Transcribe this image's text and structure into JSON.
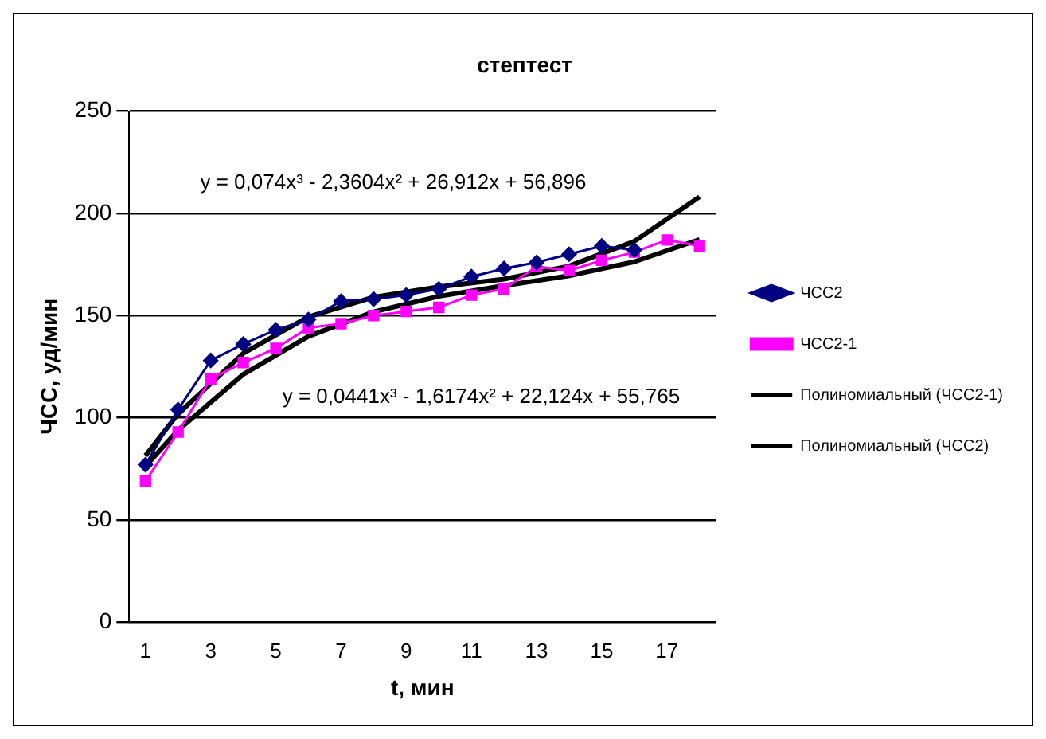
{
  "chart_data": {
    "type": "line",
    "title": "стептест",
    "xlabel": "t, мин",
    "ylabel": "ЧСС, уд/мин",
    "x": [
      1,
      2,
      3,
      4,
      5,
      6,
      7,
      8,
      9,
      10,
      11,
      12,
      13,
      14,
      15,
      16,
      17,
      18
    ],
    "xlim": [
      0.5,
      18.5
    ],
    "xticks": [
      1,
      3,
      5,
      7,
      9,
      11,
      13,
      15,
      17
    ],
    "ylim": [
      0,
      250
    ],
    "yticks": [
      0,
      50,
      100,
      150,
      200,
      250
    ],
    "grid": "y",
    "legend": "right",
    "series": [
      {
        "name": "ЧСС2",
        "color": "#000080",
        "marker": "diamond",
        "x": [
          1,
          2,
          3,
          4,
          5,
          6,
          7,
          8,
          9,
          10,
          11,
          12,
          13,
          14,
          15,
          16
        ],
        "values": [
          77,
          104,
          128,
          136,
          143,
          148,
          157,
          158,
          160,
          163,
          169,
          173,
          176,
          180,
          184,
          182
        ]
      },
      {
        "name": "ЧСС2-1",
        "color": "#ff00ff",
        "marker": "square",
        "values": [
          69,
          93,
          119,
          127,
          134,
          144,
          146,
          150,
          152,
          154,
          160,
          163,
          174,
          172,
          177,
          181,
          187,
          184
        ]
      },
      {
        "name": "Полиномиальный (ЧСС2-1)",
        "color": "#000000",
        "marker": "none",
        "x": [
          1,
          2,
          4,
          6,
          8,
          10,
          12,
          14,
          16,
          18
        ],
        "values": [
          76.3,
          93.9,
          121.2,
          139.8,
          151.8,
          159.4,
          164.6,
          169.5,
          176.3,
          187.2
        ]
      },
      {
        "name": "Полиномиальный (ЧСС2)",
        "color": "#000000",
        "marker": "none",
        "x": [
          1,
          2,
          4,
          6,
          8,
          10,
          12,
          14,
          16,
          18
        ],
        "values": [
          81.5,
          101.9,
          131.5,
          149.4,
          159.0,
          164.0,
          167.8,
          174.2,
          186.3,
          208.1
        ]
      }
    ],
    "annotations": [
      "y = 0,074x³ - 2,3604x² + 26,912x + 56,896",
      "y = 0,0441x³ - 1,6174x² + 22,124x + 55,765"
    ]
  }
}
